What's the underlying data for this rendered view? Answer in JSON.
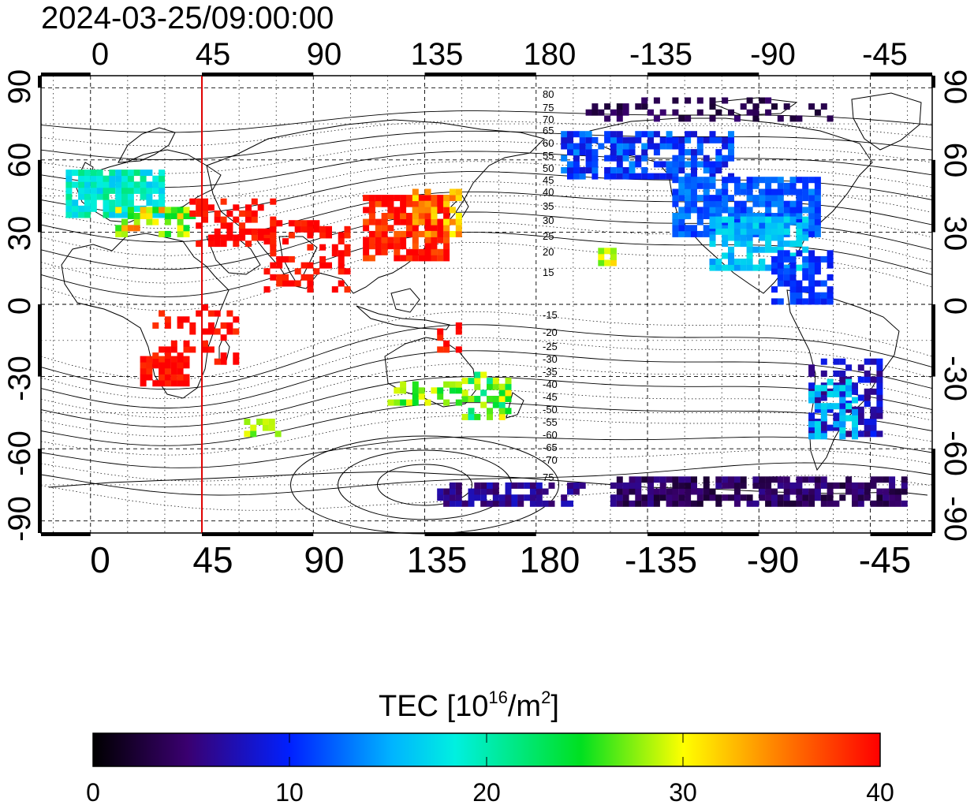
{
  "timestamp": "2024-03-25/09:00:00",
  "map": {
    "lon_ticks_top": [
      "0",
      "45",
      "90",
      "135",
      "180",
      "-135",
      "-90",
      "-45"
    ],
    "lon_ticks_bottom": [
      "0",
      "45",
      "90",
      "135",
      "180",
      "-135",
      "-90",
      "-45"
    ],
    "lat_ticks_left": [
      "90",
      "60",
      "30",
      "0",
      "-30",
      "-60",
      "-90"
    ],
    "lat_ticks_right": [
      "90",
      "60",
      "30",
      "0",
      "-30",
      "-60",
      "-90"
    ],
    "lon_range": [
      -20,
      340
    ],
    "lat_range": [
      -95,
      95
    ],
    "subsolar_longitude": 45,
    "marker_line_color": "#e00000",
    "contour_labels_north": [
      "80",
      "75",
      "70",
      "65",
      "60",
      "55",
      "50",
      "45",
      "40",
      "35",
      "30",
      "25",
      "20",
      "15"
    ],
    "contour_labels_south": [
      "-15",
      "-20",
      "-25",
      "-30",
      "-35",
      "-40",
      "-45",
      "-50",
      "-55",
      "-60",
      "-65",
      "-70",
      "75"
    ]
  },
  "colorbar": {
    "title_main": "TEC  [10",
    "title_sup1": "16",
    "title_mid": "/m",
    "title_sup2": "2",
    "title_end": "]",
    "ticks": [
      "0",
      "10",
      "20",
      "30",
      "40"
    ],
    "min": 0,
    "max": 40
  }
}
